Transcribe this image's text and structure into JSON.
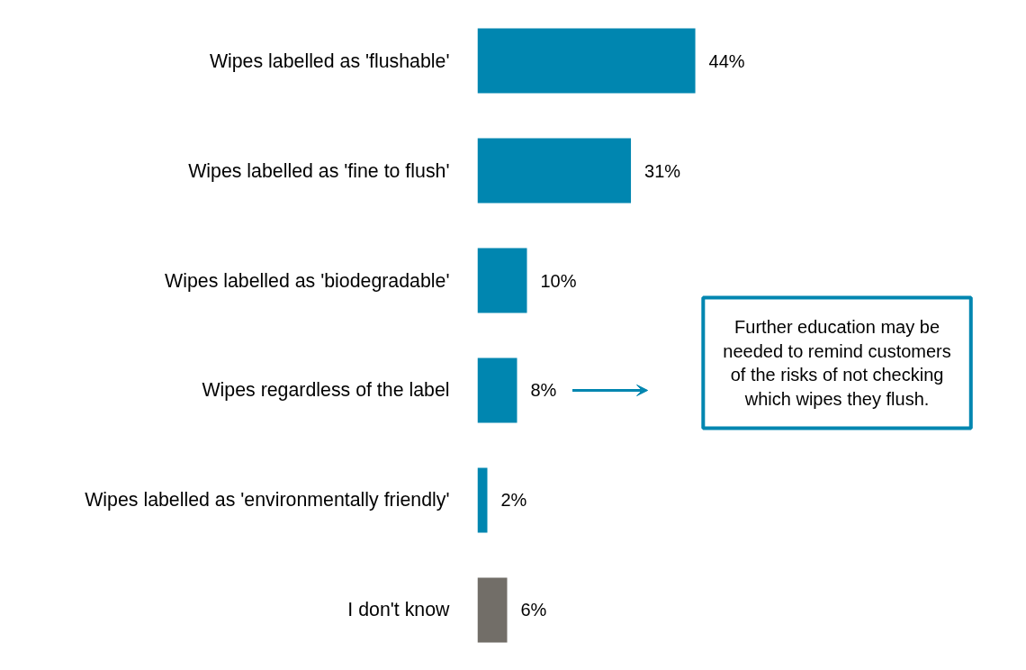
{
  "chart_data": {
    "type": "bar",
    "orientation": "horizontal",
    "categories": [
      "Wipes labelled as 'flushable'",
      "Wipes labelled as 'fine to flush'",
      "Wipes labelled as 'biodegradable'",
      "Wipes regardless of the label",
      "Wipes labelled as 'environmentally friendly'",
      "I don't know"
    ],
    "values": [
      44,
      31,
      10,
      8,
      2,
      6
    ],
    "value_labels": [
      "44%",
      "31%",
      "10%",
      "8%",
      "2%",
      "6%"
    ],
    "colors": [
      "#0086b0",
      "#0086b0",
      "#0086b0",
      "#0086b0",
      "#0086b0",
      "#726e68"
    ],
    "annotations": [
      "Further education may be needed to remind customers of the risks of not checking which wipes they flush."
    ],
    "grid": false
  }
}
